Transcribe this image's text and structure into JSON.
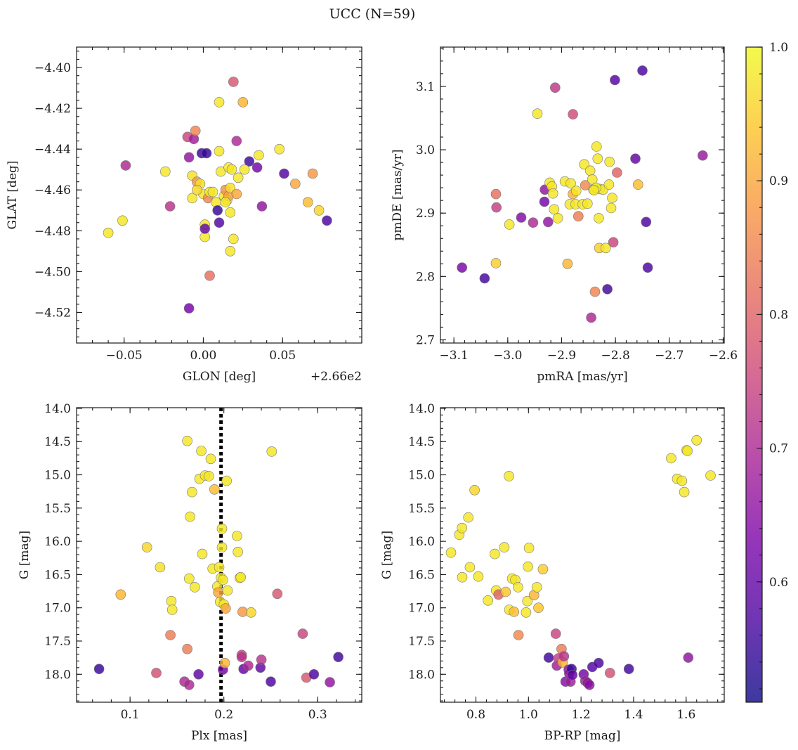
{
  "figure": {
    "title": "UCC (N=59)"
  },
  "colorbar": {
    "min": 0.51,
    "max": 1.0,
    "ticks": [
      0.6,
      0.7,
      0.8,
      0.9,
      1.0
    ],
    "tick_labels": [
      "0.6",
      "0.7",
      "0.8",
      "0.9",
      "1.0"
    ],
    "colormap": "plasma"
  },
  "chart_data": [
    {
      "id": "glon-glat",
      "type": "scatter",
      "xlabel": "GLON [deg]",
      "ylabel": "GLAT [deg]",
      "offset_label": "+2.66e2",
      "xlim": [
        -0.08,
        0.1
      ],
      "ylim": [
        -4.535,
        -4.39
      ],
      "y_inverted": false,
      "xticks": [
        -0.05,
        0.0,
        0.05
      ],
      "xtick_labels": [
        "−0.05",
        "0.00",
        "0.05"
      ],
      "yticks": [
        -4.52,
        -4.5,
        -4.48,
        -4.46,
        -4.44,
        -4.42,
        -4.4
      ],
      "ytick_labels": [
        "−4.52",
        "−4.50",
        "−4.48",
        "−4.46",
        "−4.44",
        "−4.42",
        "−4.40"
      ],
      "points": [
        [
          -0.06,
          -4.481,
          0.98
        ],
        [
          -0.051,
          -4.475,
          0.98
        ],
        [
          -0.049,
          -4.448,
          0.7
        ],
        [
          -0.024,
          -4.451,
          0.98
        ],
        [
          -0.021,
          -4.468,
          0.72
        ],
        [
          -0.01,
          -4.434,
          0.75
        ],
        [
          -0.009,
          -4.444,
          0.66
        ],
        [
          -0.009,
          -4.518,
          0.62
        ],
        [
          -0.007,
          -4.453,
          0.97
        ],
        [
          -0.007,
          -4.464,
          0.98
        ],
        [
          -0.006,
          -4.435,
          0.68
        ],
        [
          -0.005,
          -4.431,
          0.85
        ],
        [
          -0.004,
          -4.456,
          0.88
        ],
        [
          -0.002,
          -4.457,
          0.97
        ],
        [
          -0.001,
          -4.442,
          0.55
        ],
        [
          0.0,
          -4.462,
          0.98
        ],
        [
          0.001,
          -4.477,
          0.98
        ],
        [
          0.001,
          -4.483,
          0.98
        ],
        [
          0.001,
          -4.479,
          0.6
        ],
        [
          0.002,
          -4.442,
          0.55
        ],
        [
          0.003,
          -4.464,
          0.85
        ],
        [
          0.004,
          -4.502,
          0.82
        ],
        [
          0.004,
          -4.461,
          0.98
        ],
        [
          0.008,
          -4.466,
          0.98
        ],
        [
          0.009,
          -4.47,
          0.55
        ],
        [
          0.01,
          -4.476,
          0.58
        ],
        [
          0.01,
          -4.417,
          0.98
        ],
        [
          0.01,
          -4.441,
          0.98
        ],
        [
          0.011,
          -4.451,
          0.98
        ],
        [
          0.013,
          -4.463,
          0.98
        ],
        [
          0.014,
          -4.46,
          0.87
        ],
        [
          0.015,
          -4.465,
          0.98
        ],
        [
          0.016,
          -4.463,
          0.9
        ],
        [
          0.016,
          -4.449,
          0.98
        ],
        [
          0.017,
          -4.471,
          0.98
        ],
        [
          0.017,
          -4.49,
          0.98
        ],
        [
          0.017,
          -4.459,
          0.97
        ],
        [
          0.018,
          -4.45,
          0.98
        ],
        [
          0.019,
          -4.484,
          0.98
        ],
        [
          0.019,
          -4.407,
          0.78
        ],
        [
          0.021,
          -4.436,
          0.7
        ],
        [
          0.021,
          -4.462,
          0.9
        ],
        [
          0.022,
          -4.454,
          0.98
        ],
        [
          0.025,
          -4.417,
          0.92
        ],
        [
          0.029,
          -4.446,
          0.56
        ],
        [
          0.034,
          -4.449,
          0.62
        ],
        [
          0.035,
          -4.443,
          0.98
        ],
        [
          0.037,
          -4.468,
          0.66
        ],
        [
          0.048,
          -4.44,
          0.98
        ],
        [
          0.051,
          -4.452,
          0.58
        ],
        [
          0.058,
          -4.457,
          0.9
        ],
        [
          0.066,
          -4.466,
          0.93
        ],
        [
          0.069,
          -4.452,
          0.88
        ],
        [
          0.073,
          -4.47,
          0.96
        ],
        [
          0.078,
          -4.475,
          0.57
        ],
        [
          0.026,
          -4.45,
          0.98
        ],
        [
          -0.004,
          -4.46,
          0.96
        ],
        [
          0.014,
          -4.466,
          0.98
        ],
        [
          0.006,
          -4.461,
          0.98
        ]
      ]
    },
    {
      "id": "pmra-pmde",
      "type": "scatter",
      "xlabel": "pmRA [mas/yr]",
      "ylabel": "pmDE [mas/yr]",
      "xlim": [
        -3.125,
        -2.598
      ],
      "ylim": [
        2.695,
        3.162
      ],
      "y_inverted": false,
      "xticks": [
        -3.1,
        -3.0,
        -2.9,
        -2.8,
        -2.7,
        -2.6
      ],
      "xtick_labels": [
        "−3.1",
        "−3.0",
        "−2.9",
        "−2.8",
        "−2.7",
        "−2.6"
      ],
      "yticks": [
        2.7,
        2.8,
        2.9,
        3.0,
        3.1
      ],
      "ytick_labels": [
        "2.7",
        "2.8",
        "2.9",
        "3.0",
        "3.1"
      ],
      "points": [
        [
          -3.085,
          2.814,
          0.63
        ],
        [
          -3.043,
          2.797,
          0.56
        ],
        [
          -3.022,
          2.93,
          0.82
        ],
        [
          -3.021,
          2.909,
          0.74
        ],
        [
          -3.022,
          2.821,
          0.95
        ],
        [
          -2.997,
          2.882,
          0.98
        ],
        [
          -2.975,
          2.893,
          0.64
        ],
        [
          -2.953,
          2.885,
          0.7
        ],
        [
          -2.945,
          3.057,
          0.98
        ],
        [
          -2.932,
          2.918,
          0.62
        ],
        [
          -2.931,
          2.937,
          0.66
        ],
        [
          -2.925,
          2.886,
          0.66
        ],
        [
          -2.922,
          2.948,
          0.98
        ],
        [
          -2.918,
          2.942,
          0.98
        ],
        [
          -2.916,
          2.931,
          0.98
        ],
        [
          -2.914,
          2.906,
          0.98
        ],
        [
          -2.912,
          3.098,
          0.73
        ],
        [
          -2.907,
          2.892,
          0.98
        ],
        [
          -2.894,
          2.95,
          0.98
        ],
        [
          -2.889,
          2.82,
          0.92
        ],
        [
          -2.885,
          2.914,
          0.98
        ],
        [
          -2.883,
          2.947,
          0.98
        ],
        [
          -2.879,
          3.056,
          0.76
        ],
        [
          -2.879,
          2.93,
          0.91
        ],
        [
          -2.874,
          2.914,
          0.98
        ],
        [
          -2.873,
          2.935,
          0.98
        ],
        [
          -2.869,
          2.895,
          0.84
        ],
        [
          -2.861,
          2.914,
          0.98
        ],
        [
          -2.858,
          2.977,
          0.98
        ],
        [
          -2.856,
          2.944,
          0.86
        ],
        [
          -2.852,
          2.915,
          0.98
        ],
        [
          -2.847,
          2.967,
          0.98
        ],
        [
          -2.845,
          2.735,
          0.7
        ],
        [
          -2.843,
          2.953,
          0.98
        ],
        [
          -2.841,
          2.937,
          0.98
        ],
        [
          -2.838,
          2.776,
          0.85
        ],
        [
          -2.835,
          3.005,
          0.98
        ],
        [
          -2.833,
          2.986,
          0.98
        ],
        [
          -2.831,
          2.892,
          0.98
        ],
        [
          -2.83,
          2.845,
          0.95
        ],
        [
          -2.829,
          2.938,
          0.98
        ],
        [
          -2.823,
          2.937,
          0.98
        ],
        [
          -2.818,
          2.845,
          0.98
        ],
        [
          -2.815,
          2.78,
          0.56
        ],
        [
          -2.812,
          2.945,
          0.98
        ],
        [
          -2.811,
          2.981,
          0.98
        ],
        [
          -2.808,
          2.908,
          0.98
        ],
        [
          -2.806,
          2.924,
          0.98
        ],
        [
          -2.804,
          2.854,
          0.75
        ],
        [
          -2.801,
          3.11,
          0.58
        ],
        [
          -2.797,
          2.964,
          0.8
        ],
        [
          -2.763,
          2.986,
          0.6
        ],
        [
          -2.758,
          2.945,
          0.93
        ],
        [
          -2.75,
          3.125,
          0.57
        ],
        [
          -2.743,
          2.886,
          0.57
        ],
        [
          -2.74,
          2.814,
          0.57
        ],
        [
          -2.638,
          2.991,
          0.67
        ],
        [
          -2.836,
          2.94,
          0.98
        ],
        [
          -2.84,
          2.936,
          0.98
        ]
      ]
    },
    {
      "id": "plx-g",
      "type": "scatter",
      "xlabel": "Plx [mas]",
      "ylabel": "G [mag]",
      "xlim": [
        0.043,
        0.347
      ],
      "ylim": [
        18.42,
        13.99
      ],
      "y_inverted": true,
      "vline": 0.197,
      "xticks": [
        0.1,
        0.2,
        0.3
      ],
      "xtick_labels": [
        "0.1",
        "0.2",
        "0.3"
      ],
      "yticks": [
        14.0,
        14.5,
        15.0,
        15.5,
        16.0,
        16.5,
        17.0,
        17.5,
        18.0
      ],
      "ytick_labels": [
        "14.0",
        "14.5",
        "15.0",
        "15.5",
        "16.0",
        "16.5",
        "17.0",
        "17.5",
        "18.0"
      ],
      "points": [
        [
          0.067,
          17.92,
          0.55
        ],
        [
          0.09,
          16.8,
          0.92
        ],
        [
          0.118,
          16.09,
          0.96
        ],
        [
          0.128,
          17.98,
          0.77
        ],
        [
          0.132,
          16.39,
          0.97
        ],
        [
          0.143,
          17.41,
          0.84
        ],
        [
          0.144,
          16.9,
          0.98
        ],
        [
          0.145,
          17.03,
          0.98
        ],
        [
          0.158,
          18.11,
          0.7
        ],
        [
          0.161,
          14.49,
          0.98
        ],
        [
          0.161,
          17.62,
          0.84
        ],
        [
          0.163,
          16.56,
          0.98
        ],
        [
          0.163,
          18.16,
          0.7
        ],
        [
          0.164,
          15.63,
          0.98
        ],
        [
          0.166,
          15.26,
          0.98
        ],
        [
          0.169,
          16.69,
          0.98
        ],
        [
          0.173,
          18.0,
          0.6
        ],
        [
          0.174,
          15.06,
          0.98
        ],
        [
          0.176,
          14.64,
          0.98
        ],
        [
          0.177,
          16.19,
          0.98
        ],
        [
          0.18,
          15.01,
          0.98
        ],
        [
          0.184,
          15.02,
          0.98
        ],
        [
          0.186,
          14.76,
          0.98
        ],
        [
          0.188,
          16.41,
          0.98
        ],
        [
          0.19,
          15.22,
          0.93
        ],
        [
          0.193,
          16.68,
          0.98
        ],
        [
          0.194,
          16.77,
          0.9
        ],
        [
          0.195,
          16.39,
          0.98
        ],
        [
          0.196,
          16.91,
          0.98
        ],
        [
          0.197,
          16.55,
          0.98
        ],
        [
          0.198,
          15.81,
          0.98
        ],
        [
          0.198,
          16.09,
          0.98
        ],
        [
          0.199,
          16.58,
          0.98
        ],
        [
          0.199,
          17.93,
          0.62
        ],
        [
          0.2,
          16.95,
          0.98
        ],
        [
          0.201,
          17.83,
          0.92
        ],
        [
          0.202,
          17.01,
          0.9
        ],
        [
          0.203,
          15.09,
          0.98
        ],
        [
          0.204,
          16.74,
          0.98
        ],
        [
          0.214,
          15.92,
          0.98
        ],
        [
          0.215,
          16.16,
          0.98
        ],
        [
          0.217,
          16.55,
          0.98
        ],
        [
          0.218,
          16.54,
          0.98
        ],
        [
          0.219,
          17.71,
          0.75
        ],
        [
          0.219,
          17.74,
          0.72
        ],
        [
          0.22,
          17.06,
          0.88
        ],
        [
          0.221,
          17.92,
          0.6
        ],
        [
          0.226,
          17.87,
          0.7
        ],
        [
          0.229,
          17.07,
          0.96
        ],
        [
          0.239,
          17.9,
          0.6
        ],
        [
          0.24,
          17.78,
          0.72
        ],
        [
          0.25,
          18.11,
          0.57
        ],
        [
          0.251,
          14.65,
          0.98
        ],
        [
          0.257,
          16.79,
          0.78
        ],
        [
          0.284,
          17.39,
          0.75
        ],
        [
          0.288,
          18.05,
          0.78
        ],
        [
          0.296,
          18.0,
          0.57
        ],
        [
          0.313,
          18.12,
          0.66
        ],
        [
          0.322,
          17.74,
          0.56
        ]
      ]
    },
    {
      "id": "bprp-g",
      "type": "scatter",
      "xlabel": "BP-RP [mag]",
      "ylabel": "G [mag]",
      "xlim": [
        0.665,
        1.745
      ],
      "ylim": [
        18.42,
        13.99
      ],
      "y_inverted": true,
      "xticks": [
        0.8,
        1.0,
        1.2,
        1.4,
        1.6
      ],
      "xtick_labels": [
        "0.8",
        "1.0",
        "1.2",
        "1.4",
        "1.6"
      ],
      "yticks": [
        14.0,
        14.5,
        15.0,
        15.5,
        16.0,
        16.5,
        17.0,
        17.5,
        18.0
      ],
      "ytick_labels": [
        "14.0",
        "14.5",
        "15.0",
        "15.5",
        "16.0",
        "16.5",
        "17.0",
        "17.5",
        "18.0"
      ],
      "points": [
        [
          0.705,
          16.17,
          0.98
        ],
        [
          0.737,
          15.9,
          0.98
        ],
        [
          0.747,
          15.8,
          0.98
        ],
        [
          0.748,
          16.54,
          0.98
        ],
        [
          0.771,
          15.64,
          0.98
        ],
        [
          0.777,
          16.39,
          0.98
        ],
        [
          0.795,
          15.23,
          0.96
        ],
        [
          0.809,
          16.53,
          0.98
        ],
        [
          0.846,
          16.89,
          0.98
        ],
        [
          0.872,
          16.19,
          0.98
        ],
        [
          0.877,
          16.74,
          0.98
        ],
        [
          0.886,
          16.8,
          0.8
        ],
        [
          0.908,
          16.09,
          0.98
        ],
        [
          0.913,
          16.76,
          0.94
        ],
        [
          0.926,
          15.02,
          0.98
        ],
        [
          0.927,
          17.03,
          0.98
        ],
        [
          0.938,
          16.56,
          0.98
        ],
        [
          0.945,
          17.06,
          0.93
        ],
        [
          0.95,
          16.58,
          0.98
        ],
        [
          0.96,
          16.69,
          0.98
        ],
        [
          0.962,
          17.41,
          0.86
        ],
        [
          0.991,
          17.07,
          0.98
        ],
        [
          0.996,
          16.9,
          0.98
        ],
        [
          0.998,
          16.38,
          0.98
        ],
        [
          1.002,
          16.1,
          0.98
        ],
        [
          1.021,
          16.81,
          0.92
        ],
        [
          1.032,
          16.69,
          0.98
        ],
        [
          1.038,
          17.0,
          0.94
        ],
        [
          1.055,
          16.42,
          0.95
        ],
        [
          1.077,
          17.75,
          0.56
        ],
        [
          1.104,
          17.39,
          0.75
        ],
        [
          1.108,
          17.87,
          0.68
        ],
        [
          1.114,
          17.76,
          0.74
        ],
        [
          1.126,
          17.62,
          0.84
        ],
        [
          1.13,
          17.82,
          0.92
        ],
        [
          1.135,
          17.73,
          0.72
        ],
        [
          1.141,
          18.11,
          0.64
        ],
        [
          1.153,
          17.93,
          0.64
        ],
        [
          1.155,
          17.99,
          0.66
        ],
        [
          1.16,
          18.11,
          0.68
        ],
        [
          1.164,
          17.92,
          0.55
        ],
        [
          1.167,
          18.01,
          0.6
        ],
        [
          1.21,
          18.0,
          0.62
        ],
        [
          1.216,
          18.1,
          0.68
        ],
        [
          1.225,
          18.13,
          0.66
        ],
        [
          1.232,
          18.16,
          0.65
        ],
        [
          1.243,
          17.89,
          0.58
        ],
        [
          1.267,
          17.83,
          0.57
        ],
        [
          1.31,
          17.98,
          0.77
        ],
        [
          1.382,
          17.92,
          0.56
        ],
        [
          1.543,
          14.75,
          0.98
        ],
        [
          1.566,
          15.06,
          0.98
        ],
        [
          1.584,
          15.09,
          0.98
        ],
        [
          1.593,
          15.26,
          0.98
        ],
        [
          1.602,
          14.63,
          0.98
        ],
        [
          1.605,
          14.64,
          0.98
        ],
        [
          1.608,
          17.75,
          0.66
        ],
        [
          1.64,
          14.48,
          0.98
        ],
        [
          1.693,
          15.01,
          0.98
        ]
      ]
    }
  ]
}
